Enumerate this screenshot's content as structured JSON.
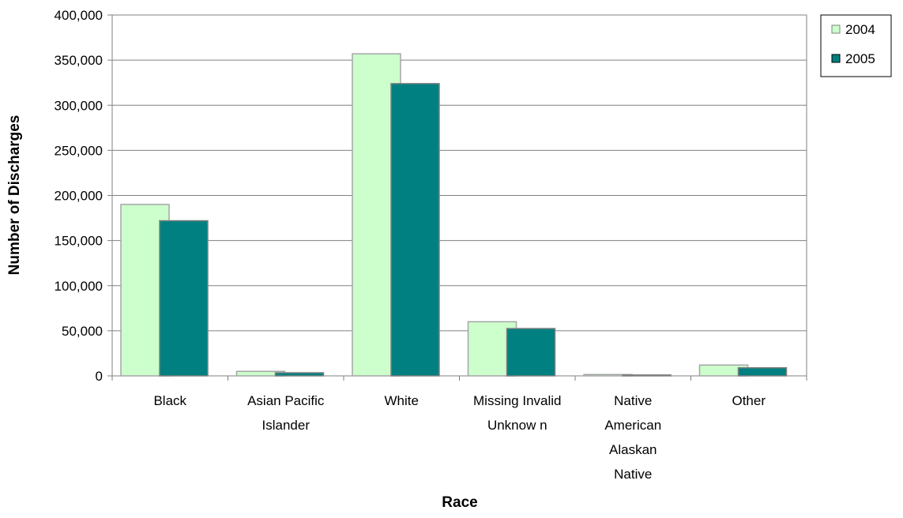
{
  "chart_data": {
    "type": "bar",
    "title": "",
    "xlabel": "Race",
    "ylabel": "Number of Discharges",
    "categories": [
      [
        "Black"
      ],
      [
        "Asian Pacific",
        "Islander"
      ],
      [
        "White"
      ],
      [
        "Missing Invalid",
        "Unknow n"
      ],
      [
        "Native",
        "American",
        "Alaskan",
        "Native"
      ],
      [
        "Other"
      ]
    ],
    "series": [
      {
        "name": "2004",
        "color": "#ccffcc",
        "values": [
          190000,
          5000,
          357000,
          60000,
          1500,
          12000
        ]
      },
      {
        "name": "2005",
        "color": "#008080",
        "values": [
          172000,
          3500,
          324000,
          52500,
          1000,
          9000
        ]
      }
    ],
    "ylim": [
      0,
      400000
    ],
    "yticks": [
      "0",
      "50,000",
      "100,000",
      "150,000",
      "200,000",
      "250,000",
      "300,000",
      "350,000",
      "400,000"
    ],
    "grid": true,
    "legend_position": "top-right"
  }
}
